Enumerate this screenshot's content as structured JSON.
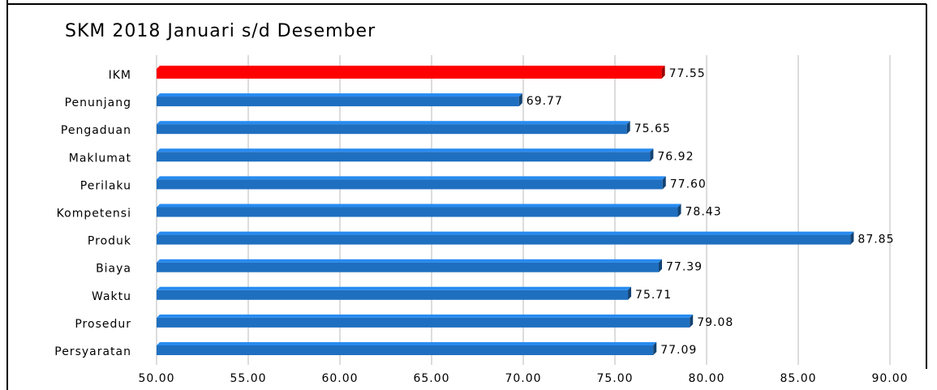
{
  "chart_data": {
    "type": "bar",
    "orientation": "horizontal",
    "title": "SKM 2018 Januari s/d Desember",
    "categories": [
      "IKM",
      "Penunjang",
      "Pengaduan",
      "Maklumat",
      "Perilaku",
      "Kompetensi",
      "Produk",
      "Biaya",
      "Waktu",
      "Prosedur",
      "Persyaratan"
    ],
    "values": [
      77.55,
      69.77,
      75.65,
      76.92,
      77.6,
      78.43,
      87.85,
      77.39,
      75.71,
      79.08,
      77.09
    ],
    "value_labels": [
      "77.55",
      "69.77",
      "75.65",
      "76.92",
      "77.60",
      "78.43",
      "87.85",
      "77.39",
      "75.71",
      "79.08",
      "77.09"
    ],
    "colors": [
      "#ff0000",
      "#1f6fc0",
      "#1f6fc0",
      "#1f6fc0",
      "#1f6fc0",
      "#1f6fc0",
      "#1f6fc0",
      "#1f6fc0",
      "#1f6fc0",
      "#1f6fc0",
      "#1f6fc0"
    ],
    "xlim": [
      50,
      90
    ],
    "xticks": [
      {
        "value": 50,
        "label": "50.00"
      },
      {
        "value": 55,
        "label": "55.00"
      },
      {
        "value": 60,
        "label": "60.00"
      },
      {
        "value": 65,
        "label": "65.00"
      },
      {
        "value": 70,
        "label": "70.00"
      },
      {
        "value": 75,
        "label": "75.00"
      },
      {
        "value": 80,
        "label": "80.00"
      },
      {
        "value": 85,
        "label": "85.00"
      },
      {
        "value": 90,
        "label": "90.00"
      }
    ],
    "grid": true
  }
}
